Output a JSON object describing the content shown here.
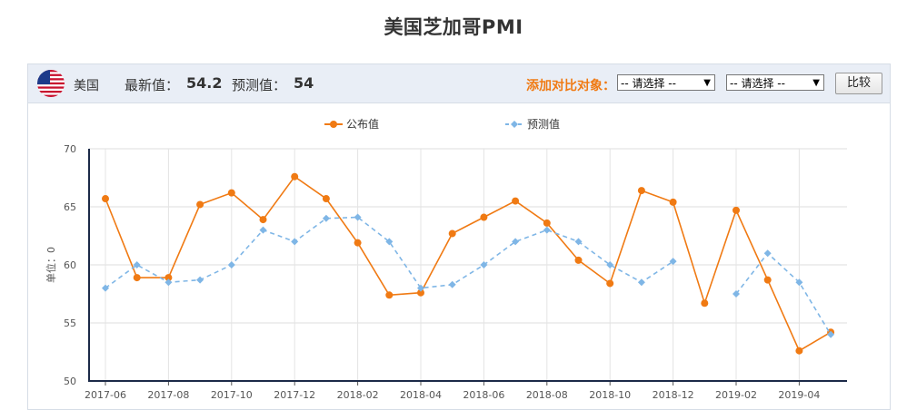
{
  "page": {
    "title": "美国芝加哥PMI"
  },
  "toolbar": {
    "country": "美国",
    "latest_label": "最新值：",
    "latest_value": "54.2",
    "forecast_label": "预测值：",
    "forecast_value": "54",
    "compare_label": "添加对比对象：",
    "select1_value": "-- 请选择 --",
    "select2_value": "-- 请选择 --",
    "compare_button": "比较"
  },
  "colors": {
    "actual": "#f07a13",
    "forecast": "#7fb6e6",
    "accent": "#f07a13"
  },
  "chart_data": {
    "type": "line",
    "ylabel": "单位：0",
    "ylim": [
      50,
      70
    ],
    "yticks": [
      50,
      55,
      60,
      65,
      70
    ],
    "x": [
      "2017-06",
      "2017-07",
      "2017-08",
      "2017-09",
      "2017-10",
      "2017-11",
      "2017-12",
      "2018-01",
      "2018-02",
      "2018-03",
      "2018-04",
      "2018-05",
      "2018-06",
      "2018-07",
      "2018-08",
      "2018-09",
      "2018-10",
      "2018-11",
      "2018-12",
      "2019-01",
      "2019-02",
      "2019-03",
      "2019-04",
      "2019-05"
    ],
    "xtick_labels": [
      "2017-06",
      "2017-08",
      "2017-10",
      "2017-12",
      "2018-02",
      "2018-04",
      "2018-06",
      "2018-08",
      "2018-10",
      "2018-12",
      "2019-02",
      "2019-04"
    ],
    "grid": true,
    "legend_position": "top-center",
    "series": [
      {
        "name": "公布值",
        "style": "solid",
        "values": [
          65.7,
          58.9,
          58.9,
          65.2,
          66.2,
          63.9,
          67.6,
          65.7,
          61.9,
          57.4,
          57.6,
          62.7,
          64.1,
          65.5,
          63.6,
          60.4,
          58.4,
          66.4,
          65.4,
          56.7,
          64.7,
          58.7,
          52.6,
          54.2
        ]
      },
      {
        "name": "预测值",
        "style": "dashed",
        "values": [
          58.0,
          60.0,
          58.5,
          58.7,
          60.0,
          63.0,
          62.0,
          64.0,
          64.1,
          62.0,
          58.0,
          58.3,
          60.0,
          62.0,
          63.0,
          62.0,
          60.0,
          58.5,
          60.3,
          null,
          57.5,
          61.0,
          58.5,
          54.0
        ]
      }
    ]
  }
}
